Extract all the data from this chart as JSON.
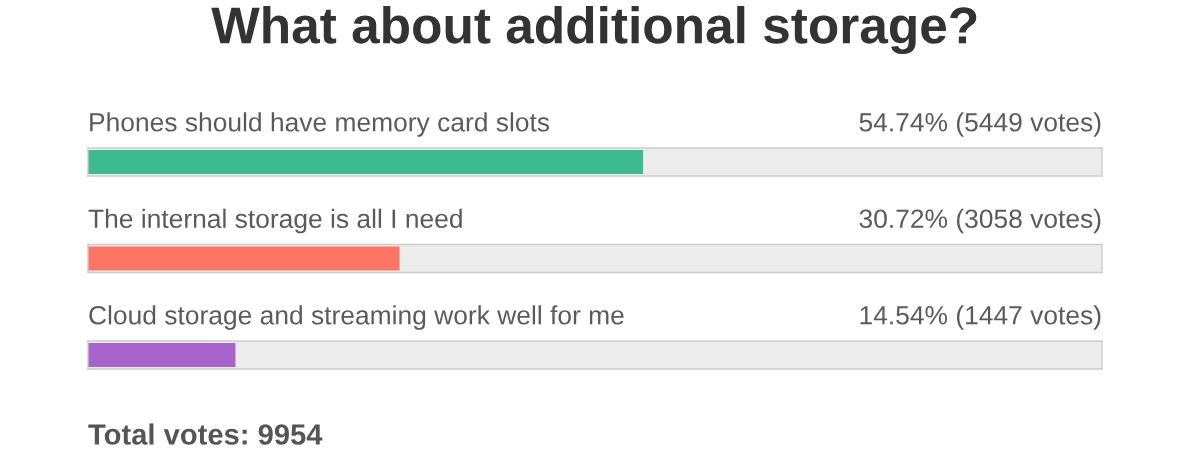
{
  "chart_data": {
    "type": "bar",
    "orientation": "horizontal",
    "title": "What about additional storage?",
    "categories": [
      "Phones should have memory card slots",
      "The internal storage is all I need",
      "Cloud storage and streaming work well for me"
    ],
    "values": [
      54.74,
      30.72,
      14.54
    ],
    "colors": [
      "#3dba8f",
      "#ff7563",
      "#a963cc"
    ],
    "value_labels": [
      "54.74% (5449 votes)",
      "30.72% (3058 votes)",
      "14.54% (1447 votes)"
    ],
    "xlim": [
      0,
      100
    ],
    "tick_labels": "y",
    "annotations": [
      "Total votes: 9954"
    ]
  }
}
